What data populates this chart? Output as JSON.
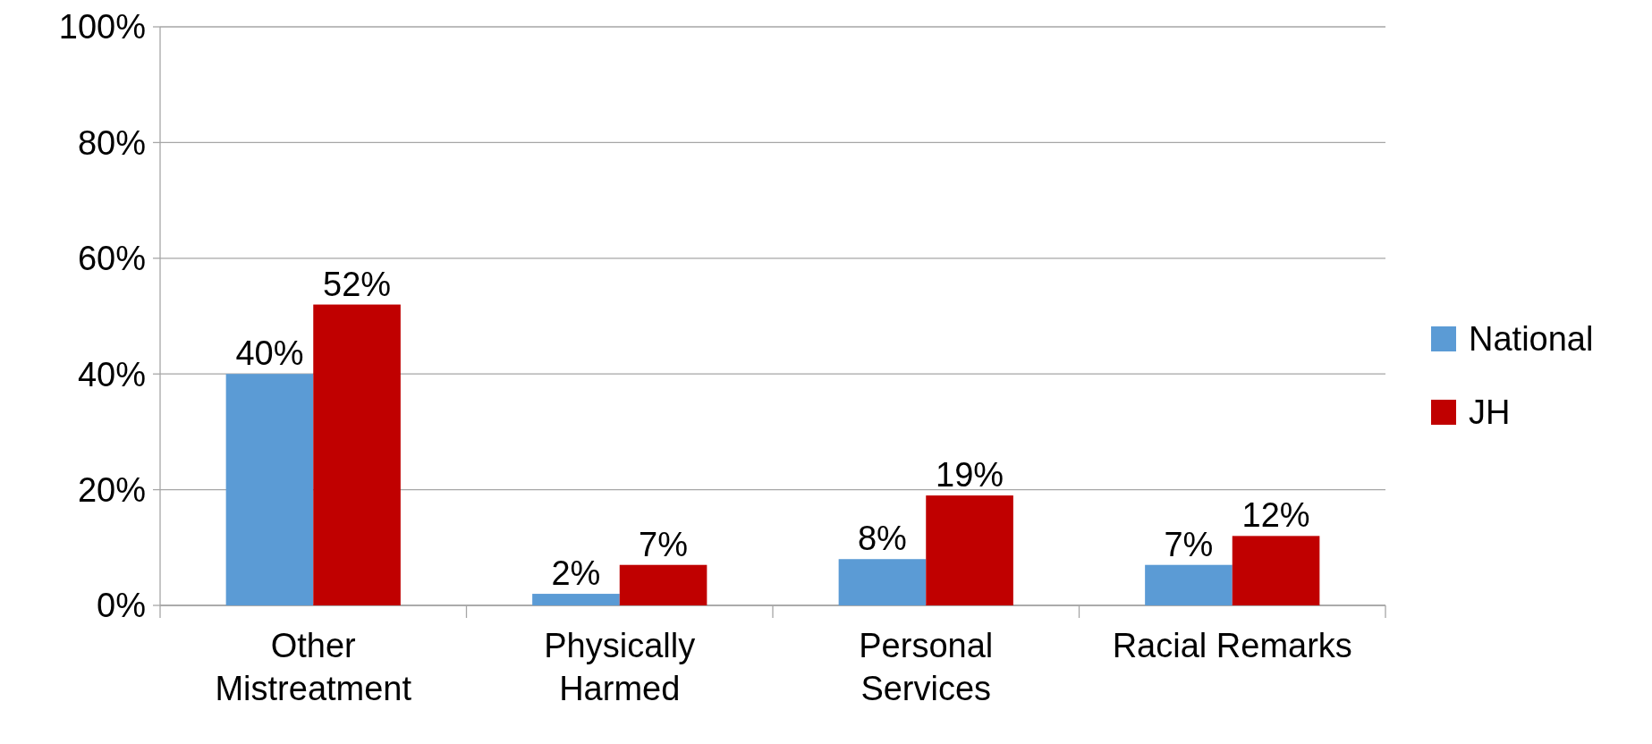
{
  "chart_data": {
    "type": "bar",
    "categories": [
      "Other Mistreatment",
      "Physically Harmed",
      "Personal Services",
      "Racial Remarks"
    ],
    "series": [
      {
        "name": "National",
        "color": "#5b9bd5",
        "values": [
          40,
          2,
          8,
          7
        ],
        "value_labels": [
          "40%",
          "2%",
          "8%",
          "7%"
        ]
      },
      {
        "name": "JH",
        "color": "#c00000",
        "values": [
          52,
          7,
          19,
          12
        ],
        "value_labels": [
          "52%",
          "7%",
          "19%",
          "12%"
        ]
      }
    ],
    "ylim": [
      0,
      100
    ],
    "yticks": [
      {
        "value": 0,
        "label": "0%"
      },
      {
        "value": 20,
        "label": "20%"
      },
      {
        "value": 40,
        "label": "40%"
      },
      {
        "value": 60,
        "label": "60%"
      },
      {
        "value": 80,
        "label": "80%"
      },
      {
        "value": 100,
        "label": "100%"
      }
    ],
    "grid": "y",
    "legend": "right"
  }
}
